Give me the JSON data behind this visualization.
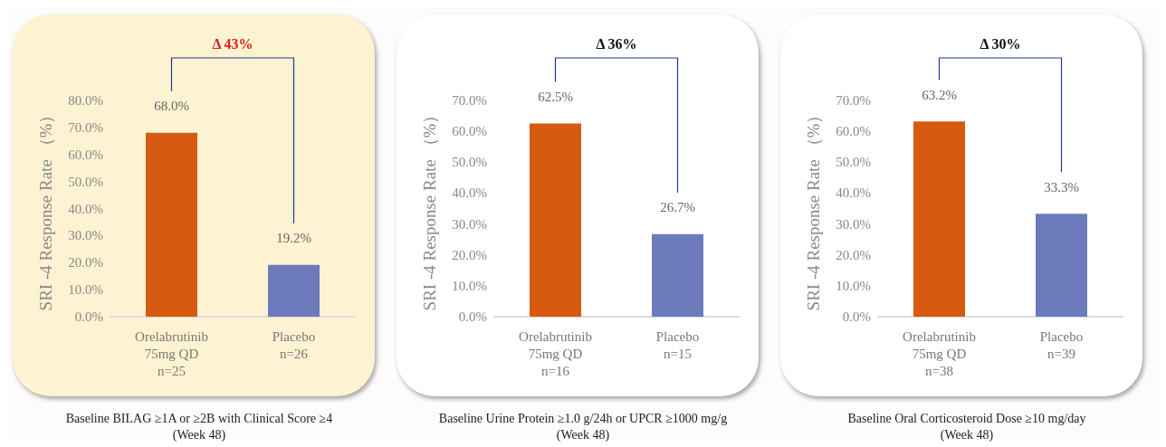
{
  "chart_data": [
    {
      "type": "bar",
      "ylabel": "SRI -4 Response Rate （%）",
      "categories": [
        "Orelabrutinib\n75mg QD\nn=25",
        "Placebo\nn=26"
      ],
      "values": [
        68.0,
        19.2
      ],
      "colors": [
        "#d65a10",
        "#6d7bbd"
      ],
      "value_labels": [
        "68.0%",
        "19.2%"
      ],
      "ylim": [
        0,
        80
      ],
      "yticks": [
        {
          "value": 0,
          "label": "0.0%"
        },
        {
          "value": 10,
          "label": "10.0%"
        },
        {
          "value": 20,
          "label": "20.0%"
        },
        {
          "value": 30,
          "label": "30.0%"
        },
        {
          "value": 40,
          "label": "40.0%"
        },
        {
          "value": 50,
          "label": "50.0%"
        },
        {
          "value": 60,
          "label": "60.0%"
        },
        {
          "value": 70,
          "label": "70.0%"
        },
        {
          "value": 80,
          "label": "80.0%"
        }
      ],
      "grid": false,
      "annotations": [
        "Δ 43%",
        "Baseline BILAG ≥1A or ≥2B with Clinical Score ≥4\n(Week 48)"
      ]
    },
    {
      "type": "bar",
      "ylabel": "SRI -4 Response Rate （%）",
      "categories": [
        "Orelabrutinib\n75mg QD\nn=16",
        "Placebo\nn=15"
      ],
      "values": [
        62.5,
        26.7
      ],
      "colors": [
        "#d65a10",
        "#6d7bbd"
      ],
      "value_labels": [
        "62.5%",
        "26.7%"
      ],
      "ylim": [
        0,
        70
      ],
      "yticks": [
        {
          "value": 0,
          "label": "0.0%"
        },
        {
          "value": 10,
          "label": "10.0%"
        },
        {
          "value": 20,
          "label": "20.0%"
        },
        {
          "value": 30,
          "label": "30.0%"
        },
        {
          "value": 40,
          "label": "40.0%"
        },
        {
          "value": 50,
          "label": "50.0%"
        },
        {
          "value": 60,
          "label": "60.0%"
        },
        {
          "value": 70,
          "label": "70.0%"
        }
      ],
      "grid": false,
      "annotations": [
        "Δ 36%",
        "Baseline Urine Protein ≥1.0 g/24h or UPCR ≥1000 mg/g\n(Week 48)"
      ]
    },
    {
      "type": "bar",
      "ylabel": "SRI -4 Response Rate （%）",
      "categories": [
        "Orelabrutinib\n75mg QD\nn=38",
        "Placebo\nn=39"
      ],
      "values": [
        63.2,
        33.3
      ],
      "colors": [
        "#d65a10",
        "#6d7bbd"
      ],
      "value_labels": [
        "63.2%",
        "33.3%"
      ],
      "ylim": [
        0,
        70
      ],
      "yticks": [
        {
          "value": 0,
          "label": "0.0%"
        },
        {
          "value": 10,
          "label": "10.0%"
        },
        {
          "value": 20,
          "label": "20.0%"
        },
        {
          "value": 30,
          "label": "30.0%"
        },
        {
          "value": 40,
          "label": "40.0%"
        },
        {
          "value": 50,
          "label": "50.0%"
        },
        {
          "value": 60,
          "label": "60.0%"
        },
        {
          "value": 70,
          "label": "70.0%"
        }
      ],
      "grid": false,
      "annotations": [
        "Δ 30%",
        "Baseline Oral Corticosteroid Dose ≥10 mg/day\n(Week 48)"
      ]
    }
  ]
}
